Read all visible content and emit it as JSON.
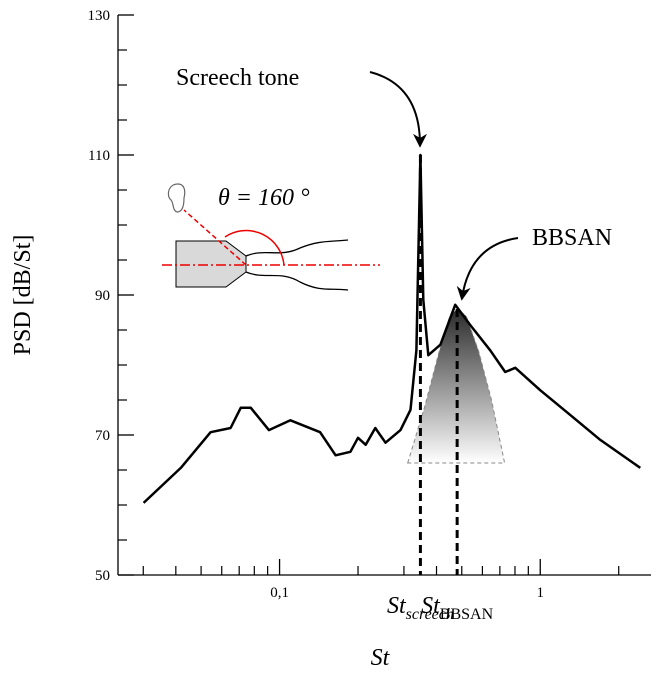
{
  "chart_data": {
    "type": "line",
    "xlabel": "St",
    "ylabel": "PSD [dB/St]",
    "xscale": "log",
    "xlim": [
      0.024,
      2.66
    ],
    "ylim": [
      50,
      130
    ],
    "xticks": [
      {
        "value": 0.1,
        "label": "0,1"
      },
      1
    ],
    "xminorticks": [
      0.03,
      0.04,
      0.05,
      0.06,
      0.07,
      0.08,
      0.09,
      0.2,
      0.3,
      0.4,
      0.5,
      0.6,
      0.7,
      0.8,
      0.9,
      2
    ],
    "yticks": [
      50,
      70,
      90,
      110,
      130
    ],
    "yminorticks": [
      55,
      60,
      65,
      75,
      80,
      85,
      95,
      100,
      105,
      115,
      120,
      125
    ],
    "series": [
      {
        "color": "#000000",
        "x": [
          0.0301,
          0.0418,
          0.0544,
          0.0649,
          0.071,
          0.0775,
          0.091,
          0.11,
          0.143,
          0.164,
          0.187,
          0.2,
          0.214,
          0.233,
          0.255,
          0.291,
          0.318,
          0.335,
          0.347,
          0.356,
          0.372,
          0.414,
          0.472,
          0.539,
          0.643,
          0.734,
          0.802,
          1.0,
          1.3,
          1.7,
          2.42
        ],
        "values": [
          60.3,
          65.3,
          70.4,
          71,
          73.9,
          73.9,
          70.7,
          72.1,
          70.4,
          67.1,
          67.6,
          69.6,
          68.6,
          71,
          68.9,
          70.7,
          73.6,
          82.1,
          110,
          89.3,
          81.4,
          82.9,
          88.6,
          85.7,
          82.1,
          79,
          79.6,
          76.4,
          72.9,
          69.3,
          65.3
        ]
      }
    ],
    "bbsan_fit": {
      "x": [
        0.31,
        0.36,
        0.41,
        0.45,
        0.48,
        0.52,
        0.58,
        0.65,
        0.73
      ],
      "values": [
        66,
        74,
        82,
        87,
        88,
        87,
        82,
        75,
        66
      ]
    },
    "markers": [
      {
        "x": 0.347,
        "y": 110,
        "label_base": "St",
        "label_sub": "screech"
      },
      {
        "x": 0.48,
        "y": 88,
        "label_base": "St",
        "label_sub": "BBSAN"
      }
    ],
    "annotations": {
      "screech": "Screech tone",
      "bbsan": "BBSAN",
      "angle": "θ = 160 °"
    }
  }
}
